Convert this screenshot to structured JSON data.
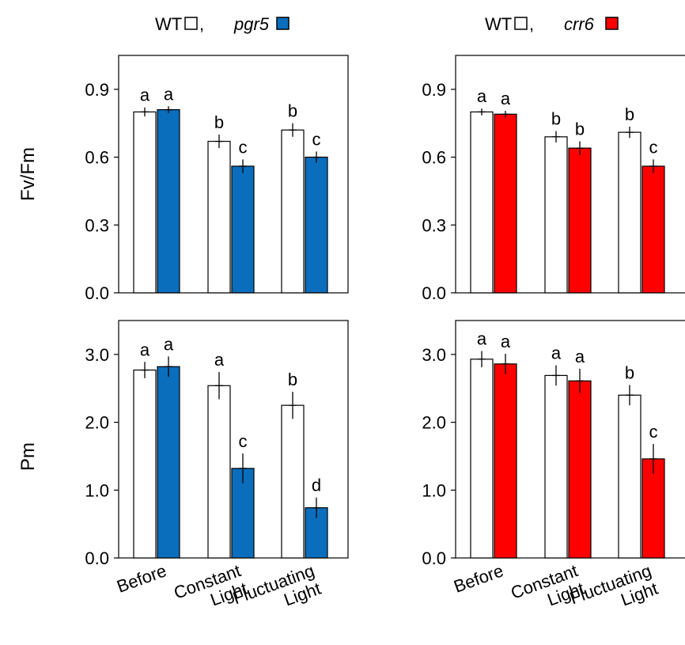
{
  "legends": [
    {
      "prefix": "WT",
      "separator": " ,",
      "mutant": "pgr5"
    },
    {
      "prefix": "WT",
      "separator": " ,",
      "mutant": "crr6"
    }
  ],
  "y_axis_titles": [
    "Fv/Fm",
    "Pm"
  ],
  "x_tick_labels": [
    [
      "Before"
    ],
    [
      "Constant",
      "Light"
    ],
    [
      "Fluctuating",
      "Light"
    ]
  ],
  "colors": {
    "wt": "#ffffff",
    "pgr5": "#0a6ebd",
    "crr6": "#ff0000",
    "axis": "#000000"
  },
  "chart_data": [
    {
      "type": "bar",
      "panel": "top-left",
      "categories": [
        "Before",
        "Constant Light",
        "Fluctuating Light"
      ],
      "ylabel": "Fv/Fm",
      "ylim": [
        0,
        1.05
      ],
      "yticks": [
        "0.0",
        "0.3",
        "0.6",
        "0.9"
      ],
      "series": [
        {
          "name": "WT",
          "values": [
            0.8,
            0.67,
            0.72
          ],
          "errors": [
            0.02,
            0.03,
            0.03
          ],
          "letters": [
            "a",
            "b",
            "b"
          ]
        },
        {
          "name": "pgr5",
          "values": [
            0.81,
            0.56,
            0.6
          ],
          "errors": [
            0.015,
            0.03,
            0.025
          ],
          "letters": [
            "a",
            "c",
            "c"
          ]
        }
      ]
    },
    {
      "type": "bar",
      "panel": "top-right",
      "categories": [
        "Before",
        "Constant Light",
        "Fluctuating Light"
      ],
      "ylabel": "Fv/Fm",
      "ylim": [
        0,
        1.05
      ],
      "yticks": [
        "0.0",
        "0.3",
        "0.6",
        "0.9"
      ],
      "series": [
        {
          "name": "WT",
          "values": [
            0.8,
            0.69,
            0.71
          ],
          "errors": [
            0.015,
            0.025,
            0.025
          ],
          "letters": [
            "a",
            "b",
            "b"
          ]
        },
        {
          "name": "crr6",
          "values": [
            0.79,
            0.64,
            0.56
          ],
          "errors": [
            0.015,
            0.03,
            0.03
          ],
          "letters": [
            "a",
            "b",
            "c"
          ]
        }
      ]
    },
    {
      "type": "bar",
      "panel": "bottom-left",
      "categories": [
        "Before",
        "Constant Light",
        "Fluctuating Light"
      ],
      "ylabel": "Pm",
      "ylim": [
        0,
        3.5
      ],
      "yticks": [
        "0.0",
        "1.0",
        "2.0",
        "3.0"
      ],
      "series": [
        {
          "name": "WT",
          "values": [
            2.77,
            2.54,
            2.25
          ],
          "errors": [
            0.12,
            0.2,
            0.2
          ],
          "letters": [
            "a",
            "a",
            "b"
          ]
        },
        {
          "name": "pgr5",
          "values": [
            2.82,
            1.32,
            0.74
          ],
          "errors": [
            0.15,
            0.22,
            0.15
          ],
          "letters": [
            "a",
            "c",
            "d"
          ]
        }
      ]
    },
    {
      "type": "bar",
      "panel": "bottom-right",
      "categories": [
        "Before",
        "Constant Light",
        "Fluctuating Light"
      ],
      "ylabel": "Pm",
      "ylim": [
        0,
        3.5
      ],
      "yticks": [
        "0.0",
        "1.0",
        "2.0",
        "3.0"
      ],
      "series": [
        {
          "name": "WT",
          "values": [
            2.93,
            2.69,
            2.4
          ],
          "errors": [
            0.12,
            0.15,
            0.15
          ],
          "letters": [
            "a",
            "a",
            "b"
          ]
        },
        {
          "name": "crr6",
          "values": [
            2.86,
            2.61,
            1.46
          ],
          "errors": [
            0.15,
            0.18,
            0.22
          ],
          "letters": [
            "a",
            "a",
            "c"
          ]
        }
      ]
    }
  ]
}
